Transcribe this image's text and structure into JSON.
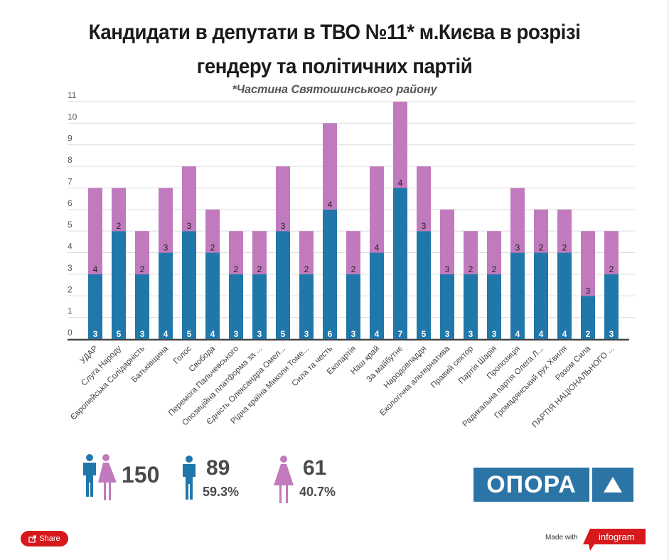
{
  "title_line1": "Кандидати в депутати в ТВО №11* м.Києва в розрізі",
  "title_line2": "гендеру та політичних партій",
  "subtitle": "*Частина Святошинського району",
  "colors": {
    "male": "#2077aa",
    "female": "#c17abd",
    "grid": "#dcdcdc",
    "axis": "#444444"
  },
  "chart_data": {
    "type": "bar",
    "stacked": true,
    "title": "Кандидати в депутати в ТВО №11* м.Києва в розрізі гендеру та політичних партій",
    "subtitle": "*Частина Святошинського району",
    "xlabel": "",
    "ylabel": "",
    "ylim": [
      0,
      11
    ],
    "yticks": [
      0,
      1,
      2,
      3,
      4,
      5,
      6,
      7,
      8,
      9,
      10,
      11
    ],
    "grid": true,
    "categories": [
      "УДАР",
      "Слуга Народу",
      "Європейська Солідарність",
      "Батьківщина",
      "Голос",
      "Свобода",
      "Перемога Пальчевського",
      "Опозиційна платформа за ...",
      "Єдність Олександра Омел...",
      "Рідна країна Миколи Томе...",
      "Сила та честь",
      "Екопартія",
      "Наш край",
      "За майбутнє",
      "Народовладдя",
      "Екологічна альтернатива",
      "Правий сектор",
      "Партія Шарія",
      "Пропозиція",
      "Радикальна партія Олега Л...",
      "Громадянський рух Хвиля",
      "Разом Сила",
      "ПАРТІЯ НАЦІОНАЛЬНОГО ..."
    ],
    "series": [
      {
        "name": "Чоловіки",
        "color": "#2077aa",
        "values": [
          3,
          5,
          3,
          4,
          5,
          4,
          3,
          3,
          5,
          3,
          6,
          3,
          4,
          7,
          5,
          3,
          3,
          3,
          4,
          4,
          4,
          2,
          3
        ]
      },
      {
        "name": "Жінки",
        "color": "#c17abd",
        "values": [
          4,
          2,
          2,
          3,
          3,
          2,
          2,
          2,
          3,
          2,
          4,
          2,
          4,
          4,
          3,
          3,
          2,
          2,
          3,
          2,
          2,
          3,
          2
        ]
      }
    ]
  },
  "summary": {
    "total": "150",
    "male_count": "89",
    "male_pct": "59.3%",
    "female_count": "61",
    "female_pct": "40.7%"
  },
  "logo": {
    "text": "ОПОРА"
  },
  "footer": {
    "share_label": "Share",
    "made_with": "Made with",
    "brand": "infogram"
  }
}
